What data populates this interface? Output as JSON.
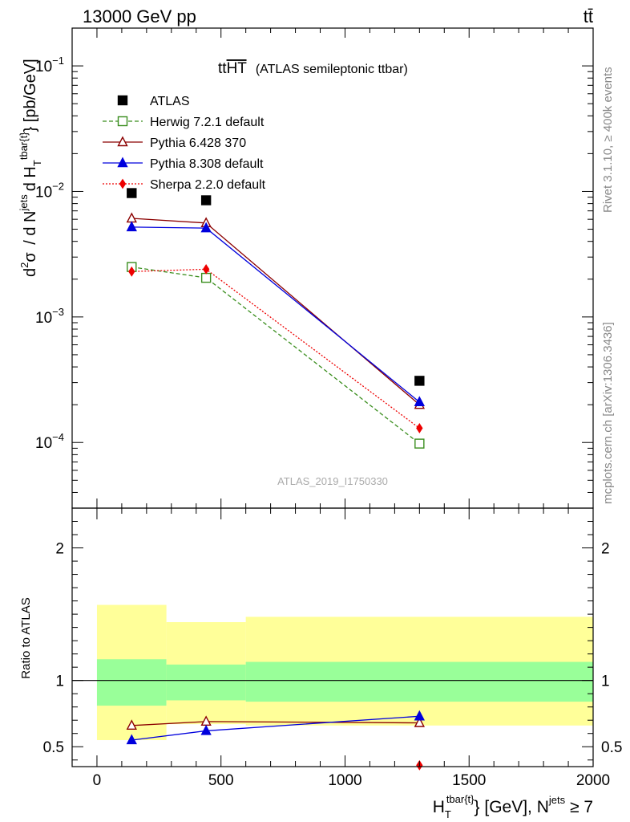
{
  "header": {
    "left": "13000 GeV pp",
    "right": "tt̄"
  },
  "side_text": {
    "rivet": "Rivet 3.1.10, ≥ 400k events",
    "mcplots": "mcplots.cern.ch [arXiv:1306.3436]"
  },
  "chart_data": [
    {
      "type": "scatter",
      "title_prefix": "tt",
      "title_overline": "HT",
      "title_suffix": "(ATLAS semileptonic ttbar)",
      "ylabel_parts": {
        "d2": "d",
        "sup2": "2",
        "sigma": "σ",
        "mid": "/ d N",
        "sup_jets": "jets",
        "mid2": "d H",
        "sub_t": "T",
        "sup_tbar": "tbar{t}",
        "unit": "} [pb/GeV]"
      },
      "watermark": "ATLAS_2019_I1750330",
      "y_scale": "log",
      "ylim": [
        3e-05,
        0.2
      ],
      "xlim": [
        -100,
        2000
      ],
      "x": [
        140,
        440,
        1300
      ],
      "y_ticks": [
        {
          "base": "10",
          "exp": "−1",
          "value": 0.1
        },
        {
          "base": "10",
          "exp": "−2",
          "value": 0.01
        },
        {
          "base": "10",
          "exp": "−3",
          "value": 0.001
        },
        {
          "base": "10",
          "exp": "−4",
          "value": 0.0001
        }
      ],
      "legend_placement": "top-left",
      "series": [
        {
          "name": "ATLAS",
          "values": [
            0.0097,
            0.0085,
            0.00031
          ],
          "color": "#000000",
          "marker": "square-filled",
          "line": "none"
        },
        {
          "name": "Herwig 7.2.1 default",
          "values": [
            0.0025,
            0.00205,
            9.8e-05
          ],
          "color": "#3a8e1e",
          "marker": "square-open",
          "line": "dashed"
        },
        {
          "name": "Pythia 6.428 370",
          "values": [
            0.0061,
            0.0056,
            0.0002
          ],
          "color": "#8b0000",
          "marker": "triangle-open",
          "line": "solid"
        },
        {
          "name": "Pythia 8.308 default",
          "values": [
            0.0052,
            0.0051,
            0.00021
          ],
          "color": "#0000dd",
          "marker": "triangle-filled",
          "line": "solid"
        },
        {
          "name": "Sherpa 2.2.0 default",
          "values": [
            0.0023,
            0.0024,
            0.00013
          ],
          "color": "#ee0000",
          "marker": "diamond-filled",
          "line": "dotted"
        }
      ]
    },
    {
      "type": "scatter",
      "ylabel": "Ratio to ATLAS",
      "ylim": [
        0.35,
        2.3
      ],
      "xlim": [
        -100,
        2000
      ],
      "y_tick_labels": [
        {
          "label": "2",
          "value": 2
        },
        {
          "label": "1",
          "value": 1
        },
        {
          "label": "0.5",
          "value": 0.5
        }
      ],
      "x_tick_labels": [
        {
          "label": "0",
          "value": 0
        },
        {
          "label": "500",
          "value": 500
        },
        {
          "label": "1000",
          "value": 1000
        },
        {
          "label": "1500",
          "value": 1500
        },
        {
          "label": "2000",
          "value": 2000
        }
      ],
      "xlabel_parts": {
        "h": "H",
        "sub_t": "T",
        "sup_tbar": "tbar{t}",
        "mid": "} [GeV], N",
        "sup_jets": "jets",
        "tail": " ≥ 7"
      },
      "bands": [
        {
          "x0": 0,
          "x1": 280,
          "stat_lo": 0.81,
          "stat_hi": 1.16,
          "tot_lo": 0.55,
          "tot_hi": 1.57
        },
        {
          "x0": 280,
          "x1": 600,
          "stat_lo": 0.85,
          "stat_hi": 1.12,
          "tot_lo": 0.67,
          "tot_hi": 1.44
        },
        {
          "x0": 600,
          "x1": 2000,
          "stat_lo": 0.84,
          "stat_hi": 1.14,
          "tot_lo": 0.66,
          "tot_hi": 1.48
        }
      ],
      "band_colors": {
        "total": "#ffff99",
        "stat": "#99ff99"
      },
      "x": [
        140,
        440,
        1300
      ],
      "series": [
        {
          "name": "Pythia 6.428 370",
          "values": [
            0.66,
            0.69,
            0.68
          ],
          "color": "#8b0000",
          "marker": "triangle-open"
        },
        {
          "name": "Pythia 8.308 default",
          "values": [
            0.55,
            0.62,
            0.73
          ],
          "color": "#0000dd",
          "marker": "triangle-filled"
        },
        {
          "name": "Sherpa 2.2.0 default",
          "values": [
            null,
            null,
            0.36
          ],
          "color": "#ee0000",
          "marker": "diamond-filled"
        }
      ]
    }
  ]
}
